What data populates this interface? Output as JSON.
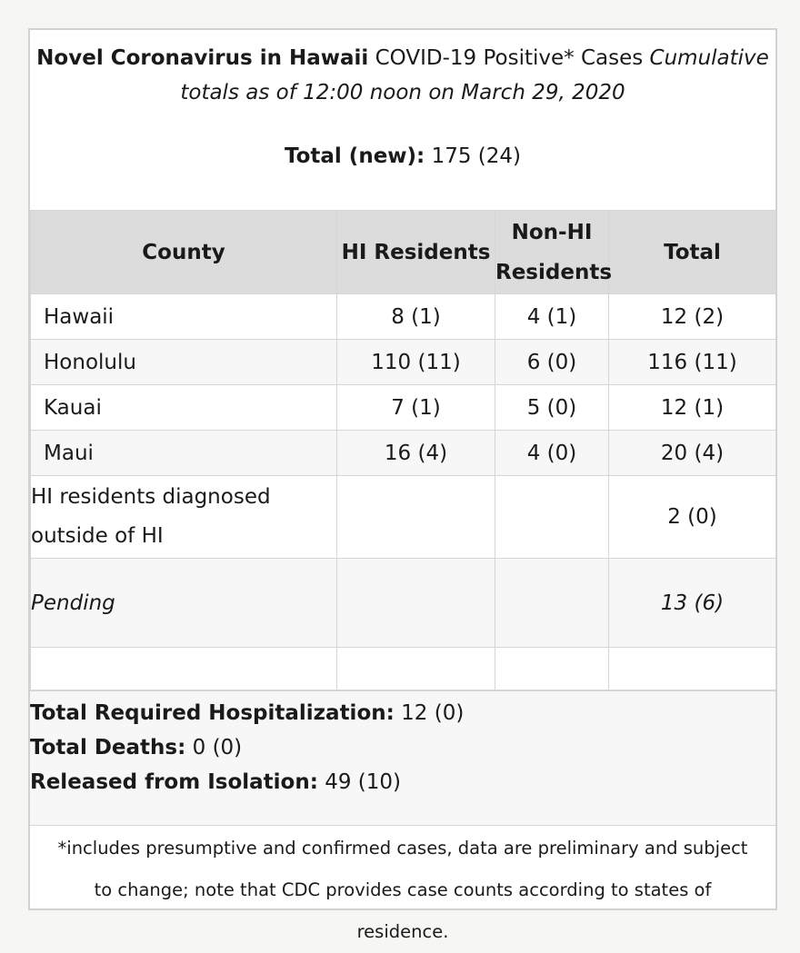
{
  "header": {
    "title_bold": "Novel Coronavirus in Hawaii",
    "title_regular": "COVID-19 Positive* Cases",
    "title_italic_1": "Cumulative",
    "title_italic_2": "totals as of 12:00 noon on March 29, 2020",
    "total_label": "Total (new):",
    "total_value": "175 (24)"
  },
  "table": {
    "columns": [
      "County",
      "HI Residents",
      "Non-HI Residents",
      "Total"
    ],
    "rows": [
      {
        "county": "Hawaii",
        "hi": "8 (1)",
        "nonhi": "4 (1)",
        "total": "12 (2)"
      },
      {
        "county": "Honolulu",
        "hi": "110 (11)",
        "nonhi": "6 (0)",
        "total": "116 (11)"
      },
      {
        "county": "Kauai",
        "hi": "7 (1)",
        "nonhi": "5 (0)",
        "total": "12 (1)"
      },
      {
        "county": "Maui",
        "hi": "16 (4)",
        "nonhi": "4 (0)",
        "total": "20 (4)"
      },
      {
        "county": "HI residents diagnosed outside of HI",
        "hi": "",
        "nonhi": "",
        "total": "2 (0)"
      },
      {
        "county": "Pending",
        "hi": "",
        "nonhi": "",
        "total": "13 (6)"
      }
    ]
  },
  "summary": {
    "hosp_label": "Total Required Hospitalization:",
    "hosp_value": "12 (0)",
    "deaths_label": "Total Deaths:",
    "deaths_value": "0 (0)",
    "released_label": "Released from Isolation:",
    "released_value": "49 (10)"
  },
  "footnote": "*includes presumptive and confirmed cases, data are preliminary and subject to change; note that CDC provides case counts according to states of residence."
}
